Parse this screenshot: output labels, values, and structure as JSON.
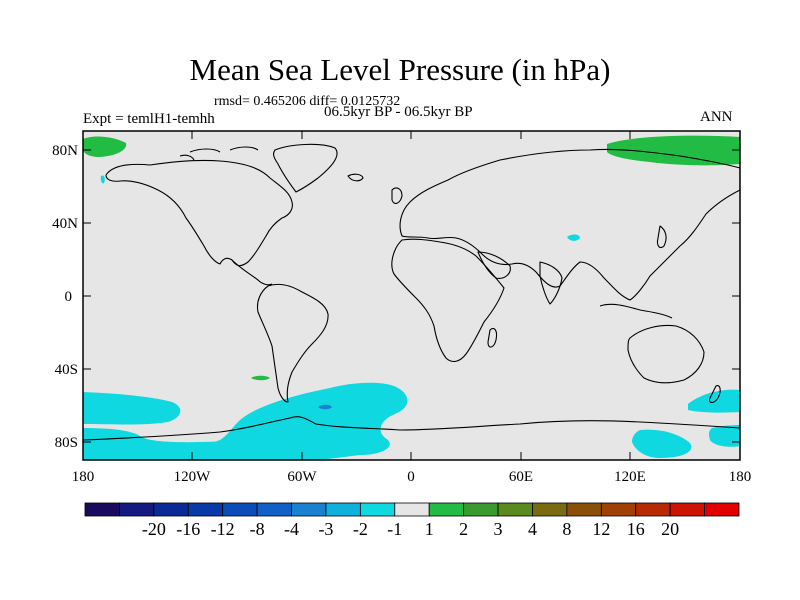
{
  "title": "Mean Sea Level Pressure (in hPa)",
  "stats": "rmsd= 0.465206  diff= 0.0125732",
  "period": "06.5kyr BP - 06.5kyr BP",
  "experiment": "Expt = temlH1-temhh",
  "season": "ANN",
  "map": {
    "lat_ticks": [
      "80N",
      "40N",
      "0",
      "40S",
      "80S"
    ],
    "lon_ticks": [
      "180",
      "120W",
      "60W",
      "0",
      "60E",
      "120E",
      "180"
    ],
    "background_color": "#e6e6e6",
    "positive_anomaly_color": "#22bb44",
    "negative_anomaly_color": "#0fd8e0"
  },
  "colorbar": {
    "labels": [
      "-20",
      "-16",
      "-12",
      "-8",
      "-4",
      "-3",
      "-2",
      "-1",
      "1",
      "2",
      "3",
      "4",
      "8",
      "12",
      "16",
      "20"
    ],
    "colors": [
      "#1a0a5e",
      "#141a80",
      "#0a2a98",
      "#0a3aa8",
      "#0a4cb8",
      "#1060c8",
      "#1a80d0",
      "#10b0dc",
      "#0fd8e0",
      "#e6e6e6",
      "#22bb44",
      "#3a9a30",
      "#5a8a20",
      "#7a6a10",
      "#8a5008",
      "#a04006",
      "#b82a04",
      "#cc1404",
      "#e00000"
    ]
  }
}
